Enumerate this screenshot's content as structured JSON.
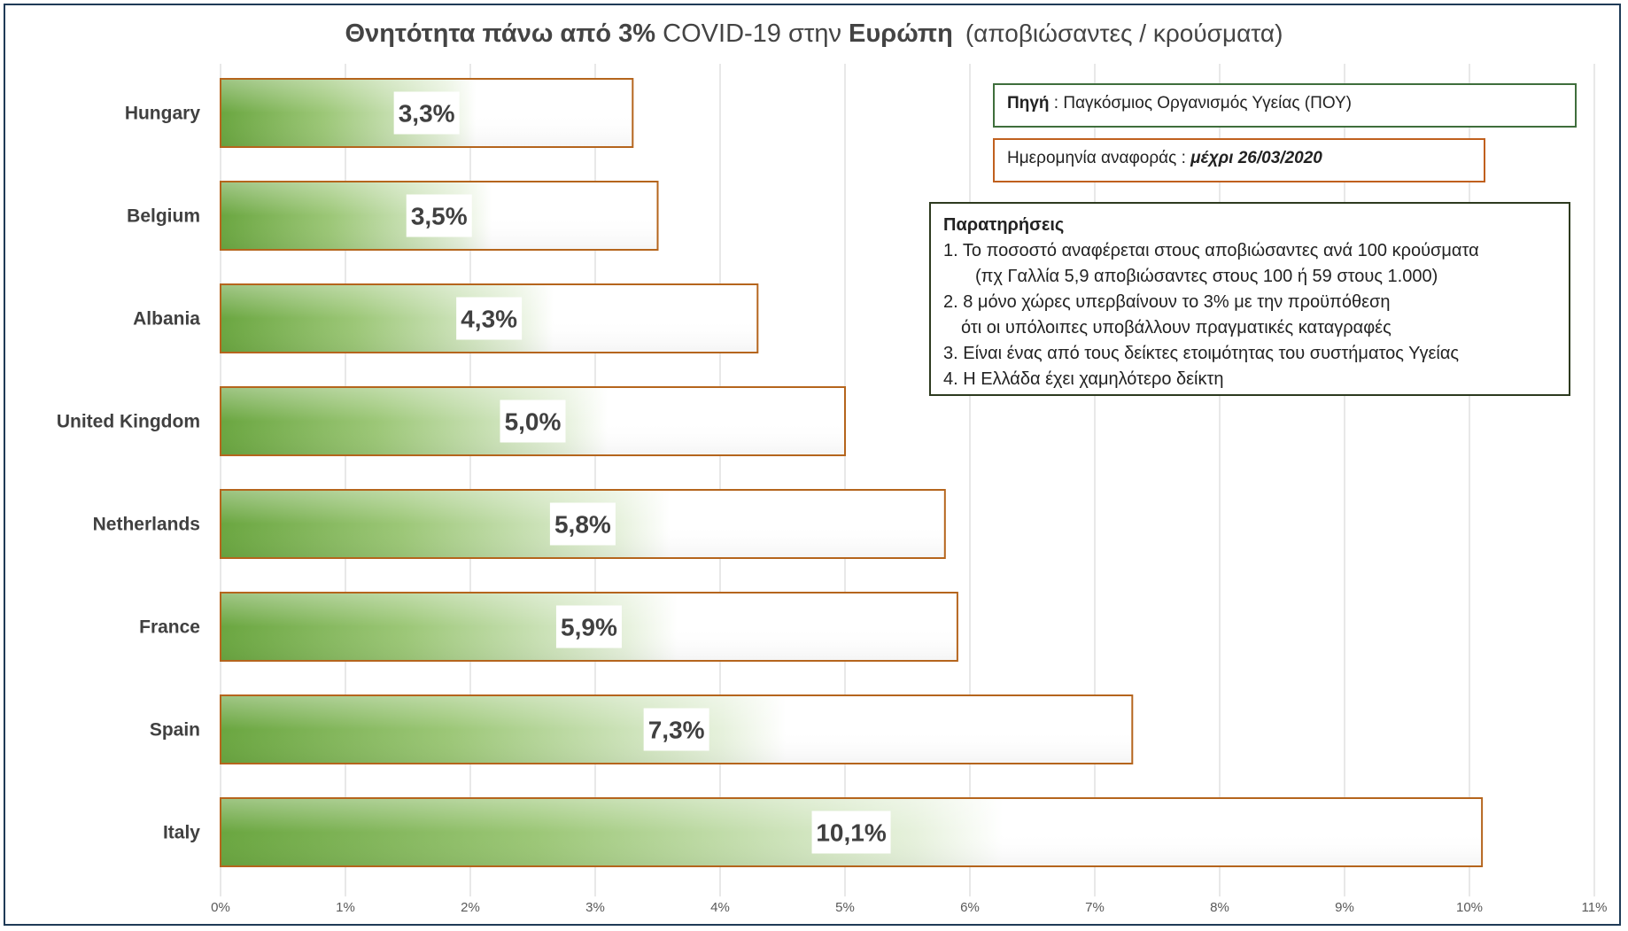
{
  "title": {
    "part1": "Θνητότητα πάνω από 3%",
    "part2": " COVID-19 στην ",
    "part3": "Ευρώπη",
    "subtitle": "(αποβιώσαντες / κρούσματα)"
  },
  "source_box": {
    "label": "Πηγή",
    "sep": " :  ",
    "text": "Παγκόσμιος Οργανισμός Υγείας (ΠΟΥ)"
  },
  "date_box": {
    "label": "Ημερομηνία αναφοράς :  ",
    "value": "μέχρι 26/03/2020"
  },
  "notes": {
    "heading": "Παρατηρήσεις",
    "line1": "1.   Το ποσοστό αναφέρεται στους αποβιώσαντες ανά 100 κρούσματα",
    "line1b": "(πχ Γαλλία 5,9 αποβιώσαντες στους 100 ή 59 στους 1.000)",
    "line2": "2. 8 μόνο χώρες υπερβαίνουν το 3% με την προϋπόθεση",
    "line2b": "ότι οι υπόλοιπες υποβάλλουν πραγματικές καταγραφές",
    "line3": "3. Είναι ένας από τους δείκτες ετοιμότητας του συστήματος Υγείας",
    "line4": "4. Η Ελλάδα έχει χαμηλότερο δείκτη"
  },
  "colors": {
    "bar_green": "#6aa640",
    "bar_border": "#b5651d",
    "grid": "#d9d9d9",
    "label_text": "#404040"
  },
  "chart_data": {
    "type": "bar",
    "orientation": "horizontal",
    "title": "Θνητότητα πάνω από 3% COVID-19 στην Ευρώπη (αποβιώσαντες / κρούσματα)",
    "categories": [
      "Hungary",
      "Belgium",
      "Albania",
      "United Kingdom",
      "Netherlands",
      "France",
      "Spain",
      "Italy"
    ],
    "values": [
      3.3,
      3.5,
      4.3,
      5.0,
      5.8,
      5.9,
      7.3,
      10.1
    ],
    "value_labels": [
      "3,3%",
      "3,5%",
      "4,3%",
      "5,0%",
      "5,8%",
      "5,9%",
      "7,3%",
      "10,1%"
    ],
    "x_ticks": [
      "0%",
      "1%",
      "2%",
      "3%",
      "4%",
      "5%",
      "6%",
      "7%",
      "8%",
      "9%",
      "10%",
      "11%"
    ],
    "xlim": [
      0,
      11
    ],
    "xlabel": "",
    "ylabel": "",
    "grid": true
  }
}
